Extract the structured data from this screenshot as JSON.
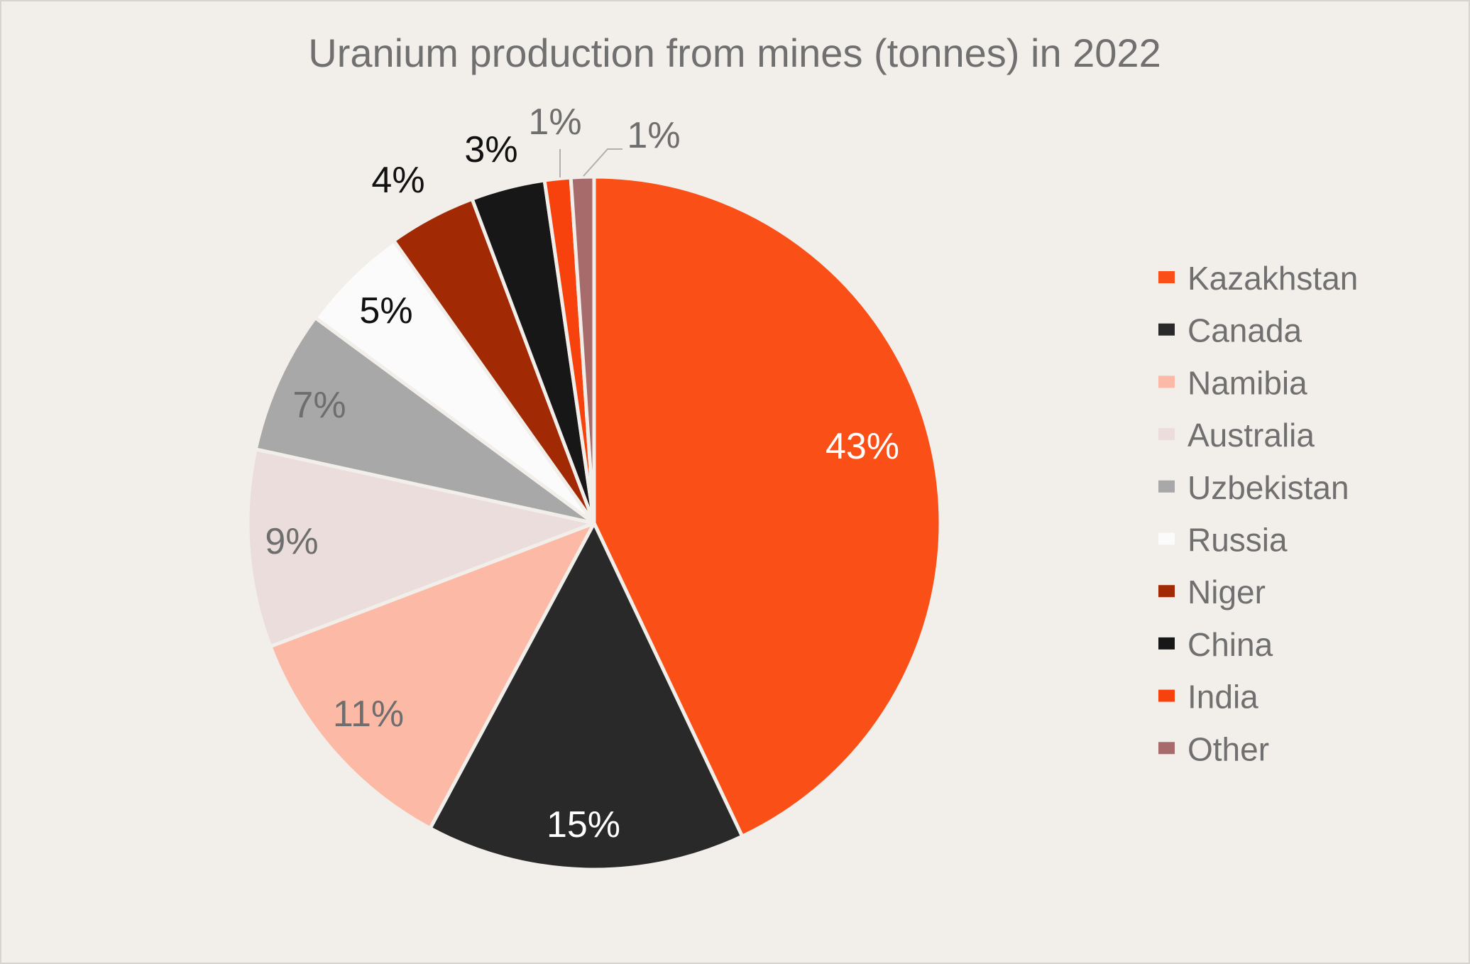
{
  "chart_data": {
    "type": "pie",
    "title": "Uranium production from mines (tonnes) in 2022",
    "unit": "tonnes",
    "legend_position": "right",
    "start_angle_deg": 0,
    "direction": "clockwise",
    "slices": [
      {
        "name": "Kazakhstan",
        "value": 21227,
        "label": "43%",
        "color": "#fa4f16",
        "label_color": "#ffffff"
      },
      {
        "name": "Canada",
        "value": 7351,
        "label": "15%",
        "color": "#292929",
        "label_color": "#ffffff"
      },
      {
        "name": "Namibia",
        "value": 5613,
        "label": "11%",
        "color": "#fcb9a6",
        "label_color": "#6e6e6e"
      },
      {
        "name": "Australia",
        "value": 4553,
        "label": "9%",
        "color": "#ebdddb",
        "label_color": "#6e6e6e"
      },
      {
        "name": "Uzbekistan",
        "value": 3300,
        "label": "7%",
        "color": "#a8a8a8",
        "label_color": "#6e6e6e"
      },
      {
        "name": "Russia",
        "value": 2508,
        "label": "5%",
        "color": "#fbfbfb",
        "label_color": "#111111"
      },
      {
        "name": "Niger",
        "value": 2020,
        "label": "4%",
        "color": "#a12a05",
        "label_color": "#111111"
      },
      {
        "name": "China",
        "value": 1700,
        "label": "3%",
        "color": "#171717",
        "label_color": "#111111"
      },
      {
        "name": "India",
        "value": 600,
        "label": "1%",
        "color": "#f8420e",
        "label_color": "#6e6e6e"
      },
      {
        "name": "Other",
        "value": 530,
        "label": "1%",
        "color": "#a86b6b",
        "label_color": "#6e6e6e"
      }
    ]
  }
}
